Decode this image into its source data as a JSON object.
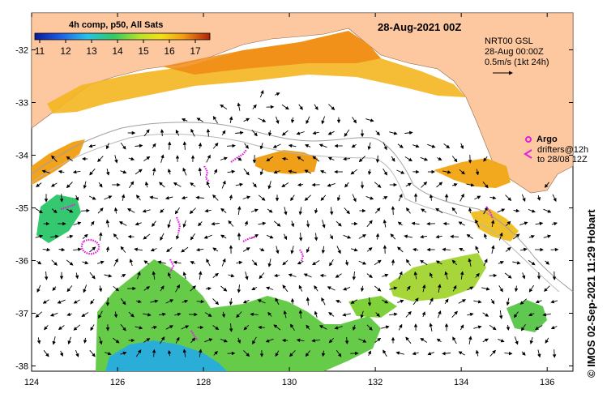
{
  "title": "28-Aug-2021 00Z",
  "colorbar": {
    "label": "4h comp, p50, All Sats",
    "ticks": [
      "11",
      "12",
      "13",
      "14",
      "15",
      "16",
      "17"
    ]
  },
  "current_legend": {
    "line1": "NRT00 GSL",
    "line2": "28-Aug 00:00Z",
    "line3": "0.5m/s (1kt 24h)"
  },
  "argo_legend": {
    "argo_label": "Argo",
    "drifters_line1": "drifters@12h",
    "drifters_line2": "to 28/08 12Z"
  },
  "side_credit": "© IMOS 02-Sep-2021 11:29 Hobart",
  "axes": {
    "x_ticks": [
      124,
      126,
      128,
      130,
      132,
      134,
      136
    ],
    "y_ticks": [
      -32,
      -33,
      -34,
      -35,
      -36,
      -37,
      -38
    ],
    "xlim": [
      124,
      136.6
    ],
    "ylim": [
      -38.1,
      -31.3
    ]
  },
  "colors": {
    "land": "#fdc8a0",
    "warm": "#f3a21c",
    "cool": "#7fd13a",
    "cold": "#2aaed8",
    "argo": "#e11ee1"
  }
}
